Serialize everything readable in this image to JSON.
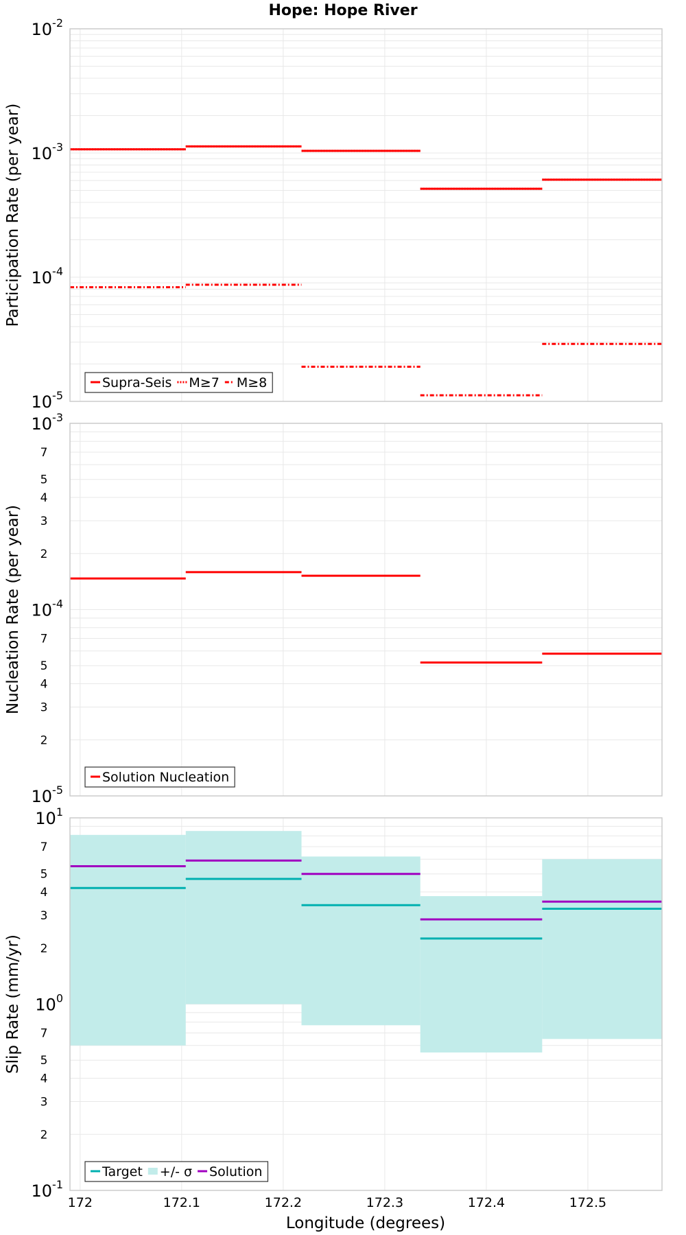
{
  "title": "Hope: Hope River",
  "xlabel": "Longitude (degrees)",
  "x_ticks": [
    "172",
    "172.1",
    "172.2",
    "172.3",
    "172.4",
    "172.5"
  ],
  "x_tick_values": [
    172.0,
    172.1,
    172.2,
    172.3,
    172.4,
    172.5
  ],
  "xlim": [
    171.99,
    172.573
  ],
  "segment_bounds": [
    [
      171.99,
      172.104
    ],
    [
      172.104,
      172.218
    ],
    [
      172.218,
      172.335
    ],
    [
      172.335,
      172.455
    ],
    [
      172.455,
      172.573
    ]
  ],
  "colors": {
    "red": "#ff0000",
    "target": "#00b0b0",
    "band": "#c2ecea",
    "solution": "#a000c0",
    "grid": "#e8e8e8",
    "frame": "#cccccc"
  },
  "chart_data": [
    {
      "type": "line",
      "name": "participation",
      "ylabel": "Participation Rate (per year)",
      "yscale": "log",
      "ylim": [
        1e-05,
        0.01
      ],
      "decade_labels": [
        {
          "base": "10",
          "exp": "-5"
        },
        {
          "base": "10",
          "exp": "-4"
        },
        {
          "base": "10",
          "exp": "-3"
        },
        {
          "base": "10",
          "exp": "-2"
        }
      ],
      "minor_labels": [],
      "series": [
        {
          "name": "Supra-Seis",
          "style": "solid",
          "values": [
            0.00107,
            0.00113,
            0.00104,
            0.000515,
            0.00061
          ]
        },
        {
          "name": "M≥7",
          "style": "dotted",
          "values": [
            0.00107,
            0.00113,
            0.00104,
            0.000515,
            0.00061
          ]
        },
        {
          "name": "M≥8",
          "style": "dashdot",
          "values": [
            8.3e-05,
            8.7e-05,
            1.9e-05,
            1.12e-05,
            2.9e-05
          ]
        }
      ],
      "legend": [
        "Supra-Seis",
        "M≥7",
        "M≥8"
      ]
    },
    {
      "type": "line",
      "name": "nucleation",
      "ylabel": "Nucleation Rate (per year)",
      "yscale": "log",
      "ylim": [
        1e-05,
        0.001
      ],
      "decade_labels": [
        {
          "base": "10",
          "exp": "-5"
        },
        {
          "base": "10",
          "exp": "-4"
        },
        {
          "base": "10",
          "exp": "-3"
        }
      ],
      "minor_labels": [
        "2",
        "3",
        "4",
        "5",
        "7"
      ],
      "series": [
        {
          "name": "Solution Nucleation",
          "style": "solid",
          "values": [
            0.000147,
            0.000159,
            0.000152,
            5.2e-05,
            5.8e-05
          ]
        }
      ],
      "legend": [
        "Solution Nucleation"
      ]
    },
    {
      "type": "line",
      "name": "slip",
      "ylabel": "Slip Rate (mm/yr)",
      "yscale": "log",
      "ylim": [
        0.1,
        10
      ],
      "decade_labels": [
        {
          "base": "10",
          "exp": "-1"
        },
        {
          "base": "10",
          "exp": "0"
        },
        {
          "base": "10",
          "exp": "1"
        }
      ],
      "minor_labels": [
        "2",
        "3",
        "4",
        "5",
        "7"
      ],
      "band": {
        "name": "+/- σ",
        "lower": [
          0.6,
          1.0,
          0.77,
          0.55,
          0.65
        ],
        "upper": [
          8.1,
          8.5,
          6.2,
          3.8,
          6.0
        ]
      },
      "series": [
        {
          "name": "Target",
          "style": "solid",
          "values": [
            4.2,
            4.7,
            3.4,
            2.25,
            3.25
          ]
        },
        {
          "name": "Solution",
          "style": "solid",
          "values": [
            5.5,
            5.9,
            5.0,
            2.85,
            3.55
          ]
        }
      ],
      "legend": [
        "Target",
        "+/- σ",
        "Solution"
      ]
    }
  ]
}
